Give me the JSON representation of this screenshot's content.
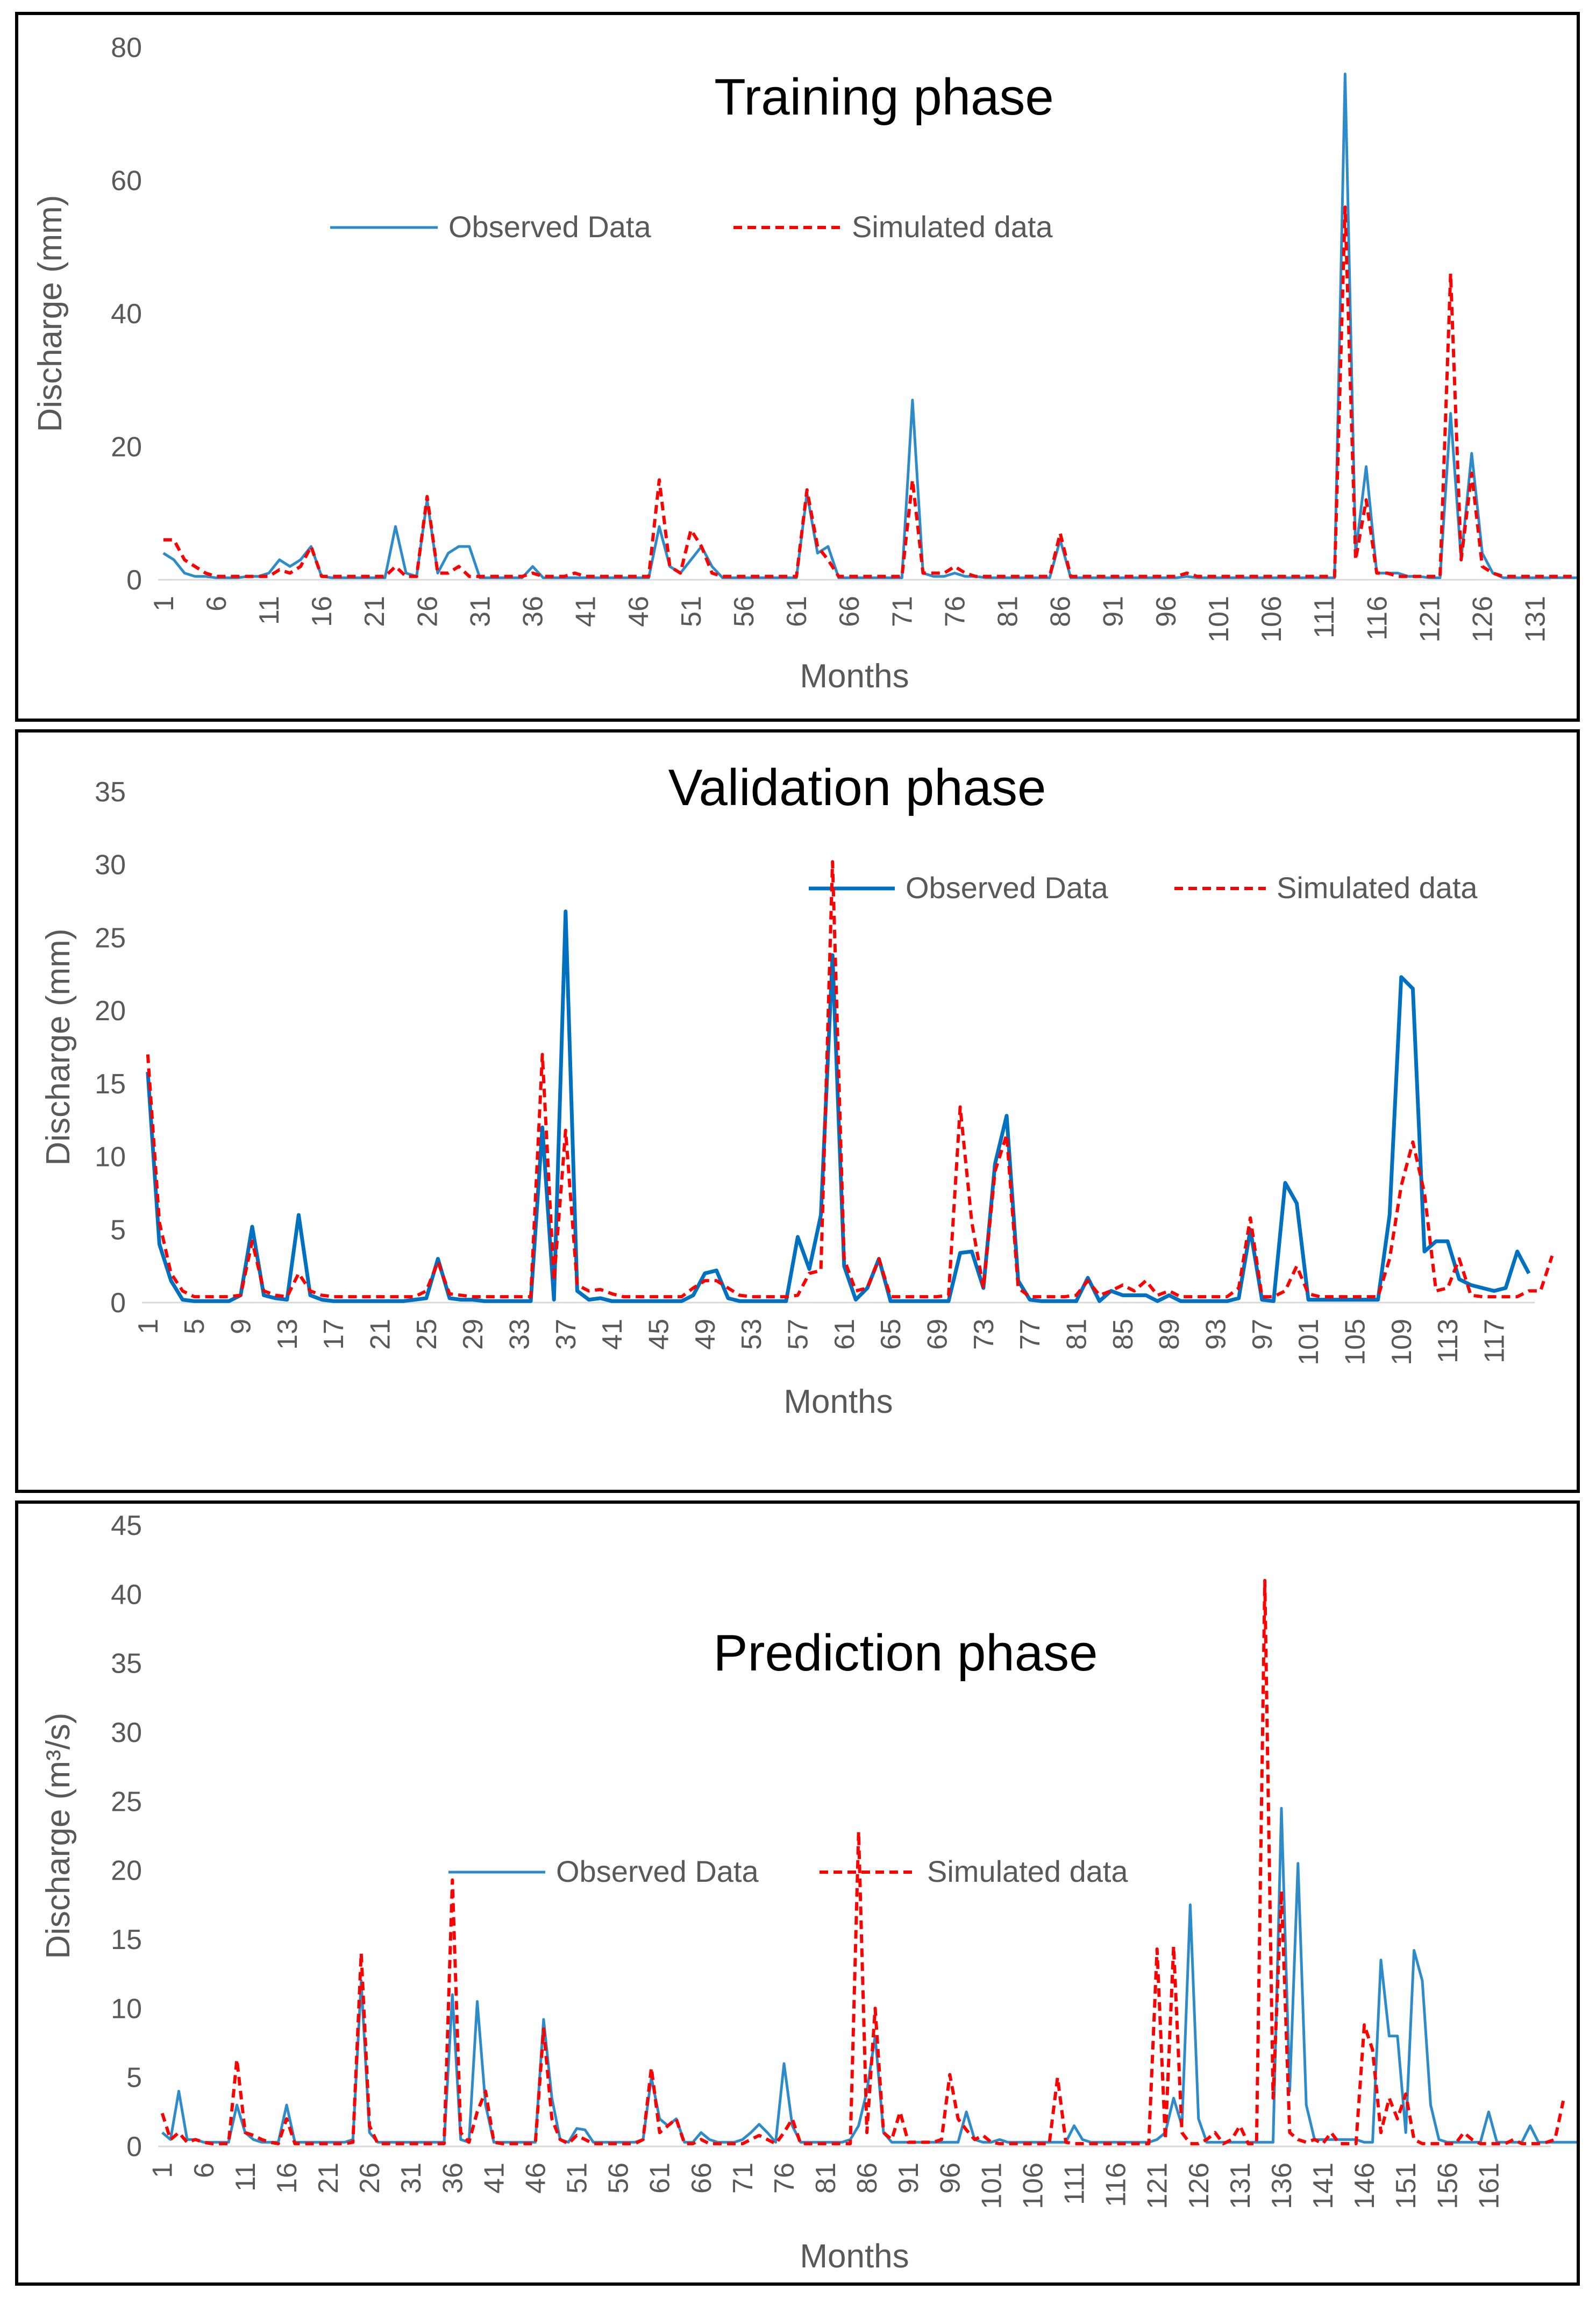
{
  "chart_data": [
    {
      "type": "line",
      "title": "Training phase",
      "xlabel": "Months",
      "ylabel": "Discharge (mm)",
      "ylim": [
        0,
        80
      ],
      "yticks": [
        "0",
        "20",
        "40",
        "60",
        "80"
      ],
      "x_count": 132,
      "xticks": [
        "1",
        "6",
        "11",
        "16",
        "21",
        "26",
        "31",
        "36",
        "41",
        "46",
        "51",
        "56",
        "61",
        "66",
        "71",
        "76",
        "81",
        "86",
        "91",
        "96",
        "101",
        "106",
        "111",
        "116",
        "121",
        "126",
        "131"
      ],
      "legend": "upper-center",
      "series": [
        {
          "name": "Observed Data",
          "color": "#2E8BC9",
          "style": "solid",
          "values": [
            4,
            3,
            1,
            0.5,
            0.5,
            0.3,
            0.3,
            0.3,
            0.5,
            0.5,
            1,
            3,
            2,
            3,
            5,
            0.5,
            0.3,
            0.3,
            0.3,
            0.3,
            0.3,
            0.3,
            8,
            1,
            0.5,
            12,
            1,
            4,
            5,
            5,
            0.3,
            0.3,
            0.3,
            0.3,
            0.3,
            2,
            0.3,
            0.3,
            0.3,
            0.3,
            0.3,
            0.3,
            0.3,
            0.3,
            0.3,
            0.3,
            0.3,
            8,
            2,
            1,
            3,
            5,
            2,
            0.3,
            0.3,
            0.3,
            0.3,
            0.3,
            0.3,
            0.3,
            0.3,
            13,
            4,
            5,
            0.3,
            0.3,
            0.3,
            0.3,
            0.3,
            0.3,
            0.3,
            27,
            1,
            0.5,
            0.5,
            1,
            0.5,
            0.5,
            0.3,
            0.3,
            0.3,
            0.3,
            0.3,
            0.3,
            0.3,
            6,
            0.3,
            0.3,
            0.3,
            0.3,
            0.3,
            0.3,
            0.3,
            0.3,
            0.3,
            0.3,
            0.3,
            0.5,
            0.3,
            0.3,
            0.3,
            0.3,
            0.3,
            0.3,
            0.3,
            0.3,
            0.3,
            0.3,
            0.3,
            0.3,
            0.3,
            0.3,
            76,
            4,
            17,
            1,
            1,
            1,
            0.5,
            0.5,
            0.3,
            0.3,
            25,
            3,
            19,
            4,
            1,
            0.3,
            0.3,
            0.3,
            0.3,
            0.3,
            0.3,
            0.3,
            0.3,
            0.3
          ]
        },
        {
          "name": "Simulated data",
          "color": "#FF0000",
          "style": "dashed",
          "values": [
            6,
            6,
            3,
            2,
            1,
            0.5,
            0.5,
            0.5,
            0.5,
            0.5,
            0.5,
            1.5,
            1,
            2,
            5,
            0.5,
            0.5,
            0.5,
            0.5,
            0.5,
            0.5,
            0.5,
            2,
            0.5,
            0.5,
            12.5,
            1,
            1,
            2,
            0.5,
            0.5,
            0.5,
            0.5,
            0.5,
            0.5,
            1,
            0.5,
            0.5,
            0.5,
            1,
            0.5,
            0.5,
            0.5,
            0.5,
            0.5,
            0.5,
            0.5,
            15,
            2,
            1,
            7.5,
            5,
            1,
            0.5,
            0.5,
            0.5,
            0.5,
            0.5,
            0.5,
            0.5,
            0.5,
            13.5,
            5,
            3,
            0.5,
            0.5,
            0.5,
            0.5,
            0.5,
            0.5,
            0.5,
            15,
            1,
            1,
            1,
            2,
            1,
            0.5,
            0.5,
            0.5,
            0.5,
            0.5,
            0.5,
            0.5,
            0.5,
            7,
            0.5,
            0.5,
            0.5,
            0.5,
            0.5,
            0.5,
            0.5,
            0.5,
            0.5,
            0.5,
            0.5,
            1,
            0.5,
            0.5,
            0.5,
            0.5,
            0.5,
            0.5,
            0.5,
            0.5,
            0.5,
            0.5,
            0.5,
            0.5,
            0.5,
            0.5,
            56,
            3,
            12,
            1,
            1,
            0.5,
            0.5,
            0.5,
            0.5,
            0.5,
            46,
            3,
            16,
            2,
            1,
            0.5,
            0.5,
            0.5,
            0.5,
            0.5,
            0.5,
            0.5,
            0.5,
            1
          ]
        }
      ]
    },
    {
      "type": "line",
      "title": "Validation phase",
      "xlabel": "Months",
      "ylabel": "Discharge (mm)",
      "ylim": [
        0,
        35
      ],
      "yticks": [
        "0",
        "5",
        "10",
        "15",
        "20",
        "25",
        "30",
        "35"
      ],
      "x_count": 120,
      "xticks": [
        "1",
        "5",
        "9",
        "13",
        "17",
        "21",
        "25",
        "29",
        "33",
        "37",
        "41",
        "45",
        "49",
        "53",
        "57",
        "61",
        "65",
        "69",
        "73",
        "77",
        "81",
        "85",
        "89",
        "93",
        "97",
        "101",
        "105",
        "109",
        "113",
        "117"
      ],
      "legend": "upper-right",
      "series": [
        {
          "name": "Observed Data",
          "color": "#0070C0",
          "style": "solid",
          "values": [
            15.8,
            4,
            1.5,
            0.2,
            0.1,
            0.1,
            0.1,
            0.1,
            0.5,
            5.2,
            0.5,
            0.3,
            0.2,
            6,
            0.5,
            0.2,
            0.1,
            0.1,
            0.1,
            0.1,
            0.1,
            0.1,
            0.1,
            0.2,
            0.3,
            3,
            0.3,
            0.2,
            0.2,
            0.1,
            0.1,
            0.1,
            0.1,
            0.1,
            12,
            0.2,
            26.8,
            0.8,
            0.2,
            0.3,
            0.1,
            0.1,
            0.1,
            0.1,
            0.1,
            0.1,
            0.1,
            0.5,
            2,
            2.2,
            0.3,
            0.1,
            0.1,
            0.1,
            0.1,
            0.1,
            4.5,
            2.3,
            6,
            23.8,
            2.5,
            0.2,
            1,
            3,
            0.1,
            0.1,
            0.1,
            0.1,
            0.1,
            0.1,
            3.4,
            3.5,
            1,
            9.5,
            12.8,
            1.5,
            0.2,
            0.1,
            0.1,
            0.1,
            0.1,
            1.7,
            0.1,
            0.8,
            0.5,
            0.5,
            0.5,
            0.1,
            0.5,
            0.1,
            0.1,
            0.1,
            0.1,
            0.1,
            0.3,
            5,
            0.2,
            0.1,
            8.2,
            6.8,
            0.2,
            0.2,
            0.2,
            0.2,
            0.2,
            0.2,
            0.2,
            6,
            22.3,
            21.5,
            3.5,
            4.2,
            4.2,
            1.6,
            1.2,
            1,
            0.8,
            1,
            3.5,
            2
          ]
        },
        {
          "name": "Simulated data",
          "color": "#FF0000",
          "style": "dashed",
          "values": [
            17,
            5.5,
            2,
            0.8,
            0.4,
            0.4,
            0.4,
            0.4,
            0.5,
            4.2,
            0.8,
            0.5,
            0.4,
            2,
            0.8,
            0.5,
            0.4,
            0.4,
            0.4,
            0.4,
            0.4,
            0.4,
            0.4,
            0.4,
            0.8,
            2.8,
            0.6,
            0.5,
            0.4,
            0.4,
            0.4,
            0.4,
            0.4,
            0.4,
            17,
            1.5,
            11.8,
            1.2,
            0.8,
            0.9,
            0.6,
            0.4,
            0.4,
            0.4,
            0.4,
            0.4,
            0.4,
            1,
            1.5,
            1.5,
            1,
            0.5,
            0.4,
            0.4,
            0.4,
            0.4,
            0.5,
            2,
            2.2,
            30.2,
            3,
            0.8,
            1,
            3,
            0.4,
            0.4,
            0.4,
            0.4,
            0.4,
            0.5,
            13.4,
            5.5,
            1,
            9,
            11.5,
            1,
            0.4,
            0.4,
            0.4,
            0.4,
            0.5,
            1.5,
            0.5,
            0.8,
            1.2,
            0.8,
            1.5,
            0.5,
            0.8,
            0.4,
            0.4,
            0.4,
            0.4,
            0.4,
            1,
            5.8,
            0.4,
            0.4,
            0.8,
            2.5,
            0.6,
            0.4,
            0.4,
            0.4,
            0.4,
            0.4,
            0.4,
            3,
            8,
            11,
            7.5,
            0.8,
            1,
            3,
            0.5,
            0.4,
            0.4,
            0.4,
            0.4,
            0.8,
            0.8,
            3.2
          ]
        }
      ]
    },
    {
      "type": "line",
      "title": "Prediction phase",
      "xlabel": "Months",
      "ylabel": "Discharge (m³/s)",
      "ylim": [
        0,
        45
      ],
      "yticks": [
        "0",
        "5",
        "10",
        "15",
        "20",
        "25",
        "30",
        "35",
        "40",
        "45"
      ],
      "x_count": 168,
      "xticks": [
        "1",
        "6",
        "11",
        "16",
        "21",
        "26",
        "31",
        "36",
        "41",
        "46",
        "51",
        "56",
        "61",
        "66",
        "71",
        "76",
        "81",
        "86",
        "91",
        "96",
        "101",
        "106",
        "111",
        "116",
        "121",
        "126",
        "131",
        "136",
        "141",
        "146",
        "151",
        "156",
        "161"
      ],
      "legend": "middle-left",
      "series": [
        {
          "name": "Observed Data",
          "color": "#2E8BC9",
          "style": "solid",
          "values": [
            1,
            0.5,
            4,
            0.5,
            0.5,
            0.3,
            0.3,
            0.3,
            0.3,
            3,
            1,
            0.5,
            0.3,
            0.3,
            0.3,
            3,
            0.3,
            0.3,
            0.3,
            0.3,
            0.3,
            0.3,
            0.3,
            0.5,
            12,
            1,
            0.3,
            0.3,
            0.3,
            0.3,
            0.3,
            0.3,
            0.3,
            0.3,
            0.3,
            11,
            0.5,
            0.3,
            10.5,
            3,
            0.3,
            0.3,
            0.3,
            0.3,
            0.3,
            0.3,
            9.2,
            3.5,
            0.5,
            0.3,
            1.3,
            1.2,
            0.3,
            0.3,
            0.3,
            0.3,
            0.3,
            0.3,
            0.5,
            5,
            2,
            1.5,
            2,
            0.3,
            0.3,
            1,
            0.5,
            0.3,
            0.3,
            0.3,
            0.5,
            1,
            1.6,
            1,
            0.3,
            6,
            1.5,
            0.3,
            0.3,
            0.3,
            0.3,
            0.3,
            0.3,
            0.5,
            1.5,
            4,
            8,
            1,
            0.3,
            0.3,
            0.3,
            0.3,
            0.3,
            0.3,
            0.3,
            0.3,
            0.3,
            2.5,
            0.5,
            0.3,
            0.3,
            0.5,
            0.3,
            0.3,
            0.3,
            0.3,
            0.3,
            0.3,
            0.3,
            0.3,
            1.5,
            0.5,
            0.3,
            0.3,
            0.3,
            0.3,
            0.3,
            0.3,
            0.3,
            0.3,
            0.5,
            1,
            3.5,
            1.5,
            17.5,
            2,
            0.3,
            0.3,
            0.3,
            0.3,
            0.3,
            0.3,
            0.3,
            0.3,
            0.3,
            24.5,
            4,
            20.5,
            3,
            0.5,
            0.5,
            0.5,
            0.5,
            0.5,
            0.5,
            0.3,
            0.3,
            13.5,
            8,
            8,
            1,
            14.2,
            12,
            3,
            0.5,
            0.3,
            0.3,
            0.3,
            0.3,
            0.3,
            2.5,
            0.3,
            0.3,
            0.3,
            0.3,
            1.5,
            0.3,
            0.3,
            0.3,
            0.3,
            0.3,
            0.3
          ]
        },
        {
          "name": "Simulated data",
          "color": "#FF0000",
          "style": "dashed",
          "values": [
            2.4,
            0.5,
            1,
            0.3,
            0.5,
            0.3,
            0.2,
            0.2,
            0.2,
            6.3,
            1,
            0.8,
            0.5,
            0.3,
            0.2,
            2,
            0.2,
            0.2,
            0.2,
            0.2,
            0.2,
            0.2,
            0.2,
            0.3,
            14,
            1.5,
            0.2,
            0.2,
            0.2,
            0.2,
            0.2,
            0.2,
            0.2,
            0.2,
            0.2,
            19.3,
            1,
            0.3,
            2.5,
            4,
            0.3,
            0.2,
            0.2,
            0.2,
            0.2,
            0.2,
            8.5,
            2,
            0.5,
            0.2,
            0.8,
            0.5,
            0.2,
            0.2,
            0.2,
            0.2,
            0.2,
            0.2,
            0.5,
            5.7,
            1,
            1.5,
            2,
            0.2,
            0.2,
            0.5,
            0.2,
            0.2,
            0.2,
            0.2,
            0.2,
            0.5,
            0.8,
            0.5,
            0.2,
            1,
            2,
            0.2,
            0.2,
            0.2,
            0.2,
            0.2,
            0.2,
            0.2,
            22.8,
            1,
            10,
            1,
            0.5,
            2.5,
            0.3,
            0.3,
            0.3,
            0.3,
            0.5,
            5.2,
            2,
            1.2,
            0.5,
            0.8,
            0.3,
            0.2,
            0.2,
            0.2,
            0.2,
            0.2,
            0.2,
            0.2,
            5,
            0.3,
            0.2,
            0.2,
            0.2,
            0.2,
            0.2,
            0.2,
            0.2,
            0.2,
            0.2,
            0.2,
            14.3,
            0.5,
            14.5,
            1,
            0.2,
            0.2,
            0.5,
            1,
            0.2,
            0.5,
            1.5,
            0.2,
            0.2,
            41,
            3.5,
            18.5,
            1,
            0.5,
            0.3,
            0.5,
            0.2,
            1,
            0.2,
            0.2,
            0.2,
            8.8,
            7,
            1,
            3.5,
            2,
            3.8,
            0.5,
            0.2,
            0.2,
            0.2,
            0.2,
            0.2,
            1,
            0.5,
            0.2,
            0.2,
            0.2,
            0.2,
            0.5,
            0.2,
            0.2,
            0.2,
            0.3,
            0.5,
            3.3
          ]
        }
      ]
    }
  ]
}
